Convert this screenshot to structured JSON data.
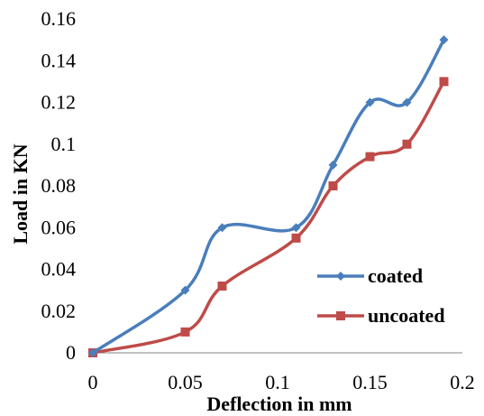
{
  "chart_data": {
    "type": "line",
    "smooth": true,
    "xlabel": "Deflection in mm",
    "ylabel": "Load in KN",
    "xlim": [
      0,
      0.2
    ],
    "ylim": [
      0,
      0.16
    ],
    "x_ticks": [
      "0",
      "0.05",
      "0.1",
      "0.15",
      "0.2"
    ],
    "y_ticks": [
      "0",
      "0.02",
      "0.04",
      "0.06",
      "0.08",
      "0.1",
      "0.12",
      "0.14",
      "0.16"
    ],
    "grid": false,
    "legend_position": "bottom-right",
    "series": [
      {
        "name": "coated",
        "color": "#4a7ebb",
        "marker": "diamond",
        "x": [
          0,
          0.05,
          0.07,
          0.11,
          0.13,
          0.15,
          0.17,
          0.19
        ],
        "y": [
          0,
          0.03,
          0.06,
          0.06,
          0.09,
          0.12,
          0.12,
          0.15
        ]
      },
      {
        "name": "uncoated",
        "color": "#be4b48",
        "marker": "square",
        "x": [
          0,
          0.05,
          0.07,
          0.11,
          0.13,
          0.15,
          0.17,
          0.19
        ],
        "y": [
          0,
          0.01,
          0.032,
          0.055,
          0.08,
          0.094,
          0.1,
          0.13
        ]
      }
    ]
  }
}
